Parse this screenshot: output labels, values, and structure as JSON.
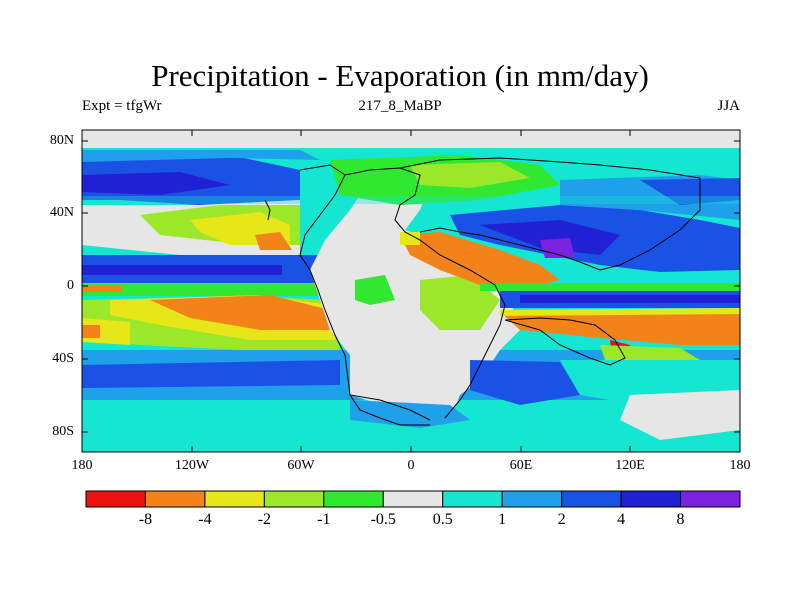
{
  "title": "Precipitation - Evaporation (in mm/day)",
  "subtitle_left": "Expt = tfgWr",
  "subtitle_center": "217_8_MaBP",
  "subtitle_right": "JJA",
  "lat_labels": [
    "80N",
    "40N",
    "0",
    "40S",
    "80S"
  ],
  "lon_labels": [
    "180",
    "120W",
    "60W",
    "0",
    "60E",
    "120E",
    "180"
  ],
  "colorbar": {
    "colors": [
      "#ee1111",
      "#f28318",
      "#e6e618",
      "#9be82a",
      "#30e830",
      "#e6e6e6",
      "#15e6d2",
      "#1ea0ea",
      "#1a52e6",
      "#2020d4",
      "#7a22e0"
    ],
    "labels": [
      "-8",
      "-4",
      "-2",
      "-1",
      "-0.5",
      "0.5",
      "1",
      "2",
      "4",
      "8"
    ]
  }
}
